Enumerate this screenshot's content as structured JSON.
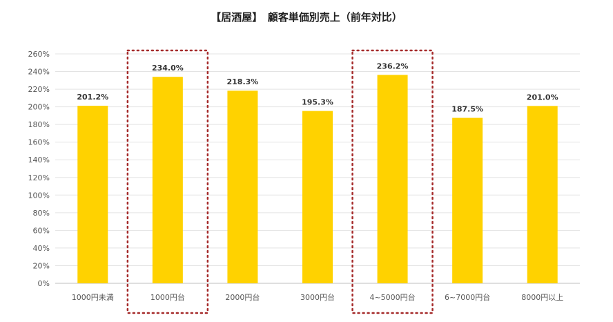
{
  "chart_data": {
    "type": "bar",
    "title": "【居酒屋】　顧客単価別売上（前年対比）",
    "xlabel": "",
    "ylabel": "",
    "categories": [
      "1000円未満",
      "1000円台",
      "2000円台",
      "3000円台",
      "4~5000円台",
      "6~7000円台",
      "8000円以上"
    ],
    "values": [
      201.2,
      234.0,
      218.3,
      195.3,
      236.2,
      187.5,
      201.0
    ],
    "value_labels": [
      "201.2%",
      "234.0%",
      "218.3%",
      "195.3%",
      "236.2%",
      "187.5%",
      "201.0%"
    ],
    "ylim": [
      0,
      260
    ],
    "yticks": [
      "0%",
      "20%",
      "40%",
      "60%",
      "80%",
      "100%",
      "120%",
      "140%",
      "160%",
      "180%",
      "200%",
      "220%",
      "240%",
      "260%"
    ],
    "grid": true,
    "legend": "none",
    "bar_color": "#FFD200",
    "highlighted_categories": [
      "1000円台",
      "4~5000円台"
    ],
    "highlight_color": "#A52A2A"
  }
}
